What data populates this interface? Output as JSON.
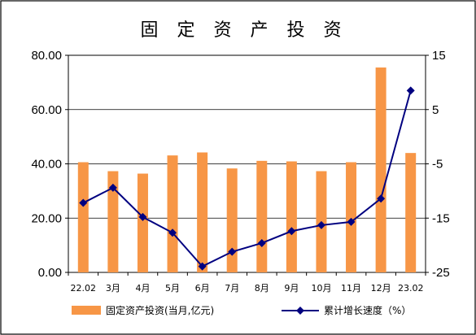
{
  "chart_data": {
    "type": "bar+line",
    "title": "固 定 资 产 投 资",
    "categories": [
      "22.02",
      "3月",
      "4月",
      "5月",
      "6月",
      "7月",
      "8月",
      "9月",
      "10月",
      "11月",
      "12月",
      "23.02"
    ],
    "series": [
      {
        "name": "固定资产投资(当月,亿元)",
        "type": "bar",
        "axis": "left",
        "color": "#F79646",
        "values": [
          40.6,
          37.3,
          36.4,
          43.1,
          44.2,
          38.3,
          41.1,
          40.9,
          37.3,
          40.6,
          75.5,
          44.0
        ]
      },
      {
        "name": "累计增长速度（%）",
        "type": "line",
        "axis": "right",
        "color": "#000080",
        "values": [
          -12.2,
          -9.4,
          -14.8,
          -17.7,
          -23.9,
          -21.2,
          -19.6,
          -17.4,
          -16.3,
          -15.7,
          -11.4,
          8.5
        ]
      }
    ],
    "left_axis": {
      "ylim": [
        0,
        80
      ],
      "ticks": [
        "0.00",
        "20.00",
        "40.00",
        "60.00",
        "80.00"
      ]
    },
    "right_axis": {
      "ylim": [
        -25,
        15
      ],
      "ticks": [
        "-25",
        "-15",
        "-5",
        "5",
        "15"
      ]
    },
    "grid": true,
    "legend_position": "bottom"
  }
}
